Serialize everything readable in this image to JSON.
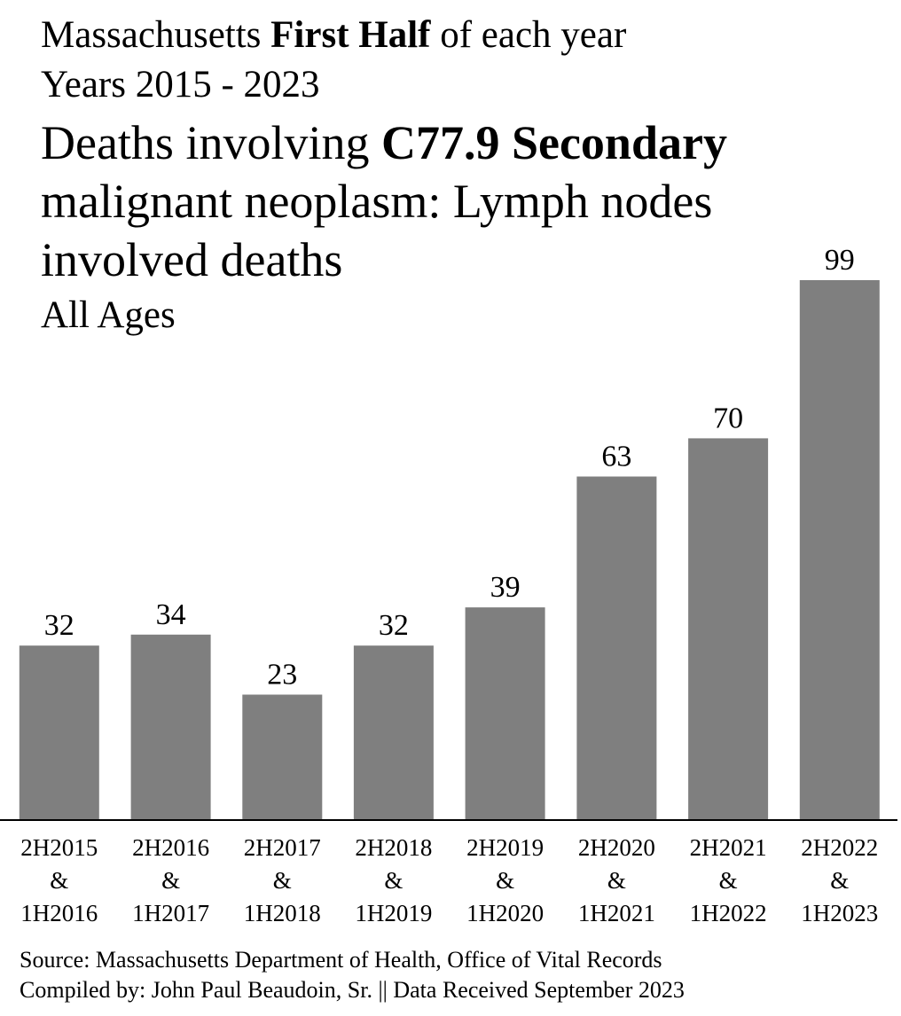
{
  "header": {
    "line1_pre": "Massachusetts",
    "line1_bold": "First Half",
    "line1_post": "of each year",
    "line2": "Years 2015 - 2023",
    "title_pre": "Deaths involving",
    "title_bold": "C77.9 Secondary",
    "title_line2": "malignant neoplasm: Lymph nodes",
    "title_line3": "involved deaths",
    "subtitle": "All Ages"
  },
  "chart_data": {
    "type": "bar",
    "title": "Deaths involving C77.9 Secondary malignant neoplasm: Lymph nodes involved deaths",
    "categories": [
      [
        "2H2015",
        "&",
        "1H2016"
      ],
      [
        "2H2016",
        "&",
        "1H2017"
      ],
      [
        "2H2017",
        "&",
        "1H2018"
      ],
      [
        "2H2018",
        "&",
        "1H2019"
      ],
      [
        "2H2019",
        "&",
        "1H2020"
      ],
      [
        "2H2020",
        "&",
        "1H2021"
      ],
      [
        "2H2021",
        "&",
        "1H2022"
      ],
      [
        "2H2022",
        "&",
        "1H2023"
      ]
    ],
    "values": [
      32,
      34,
      23,
      32,
      39,
      63,
      70,
      99
    ],
    "xlabel": "",
    "ylabel": "",
    "ylim": [
      0,
      99
    ],
    "grid": false,
    "bar_color": "#7f7f7f"
  },
  "footer": {
    "source": "Source:  Massachusetts Department of Health, Office of Vital Records",
    "compiled": "Compiled by:  John Paul Beaudoin, Sr. || Data Received September 2023"
  }
}
